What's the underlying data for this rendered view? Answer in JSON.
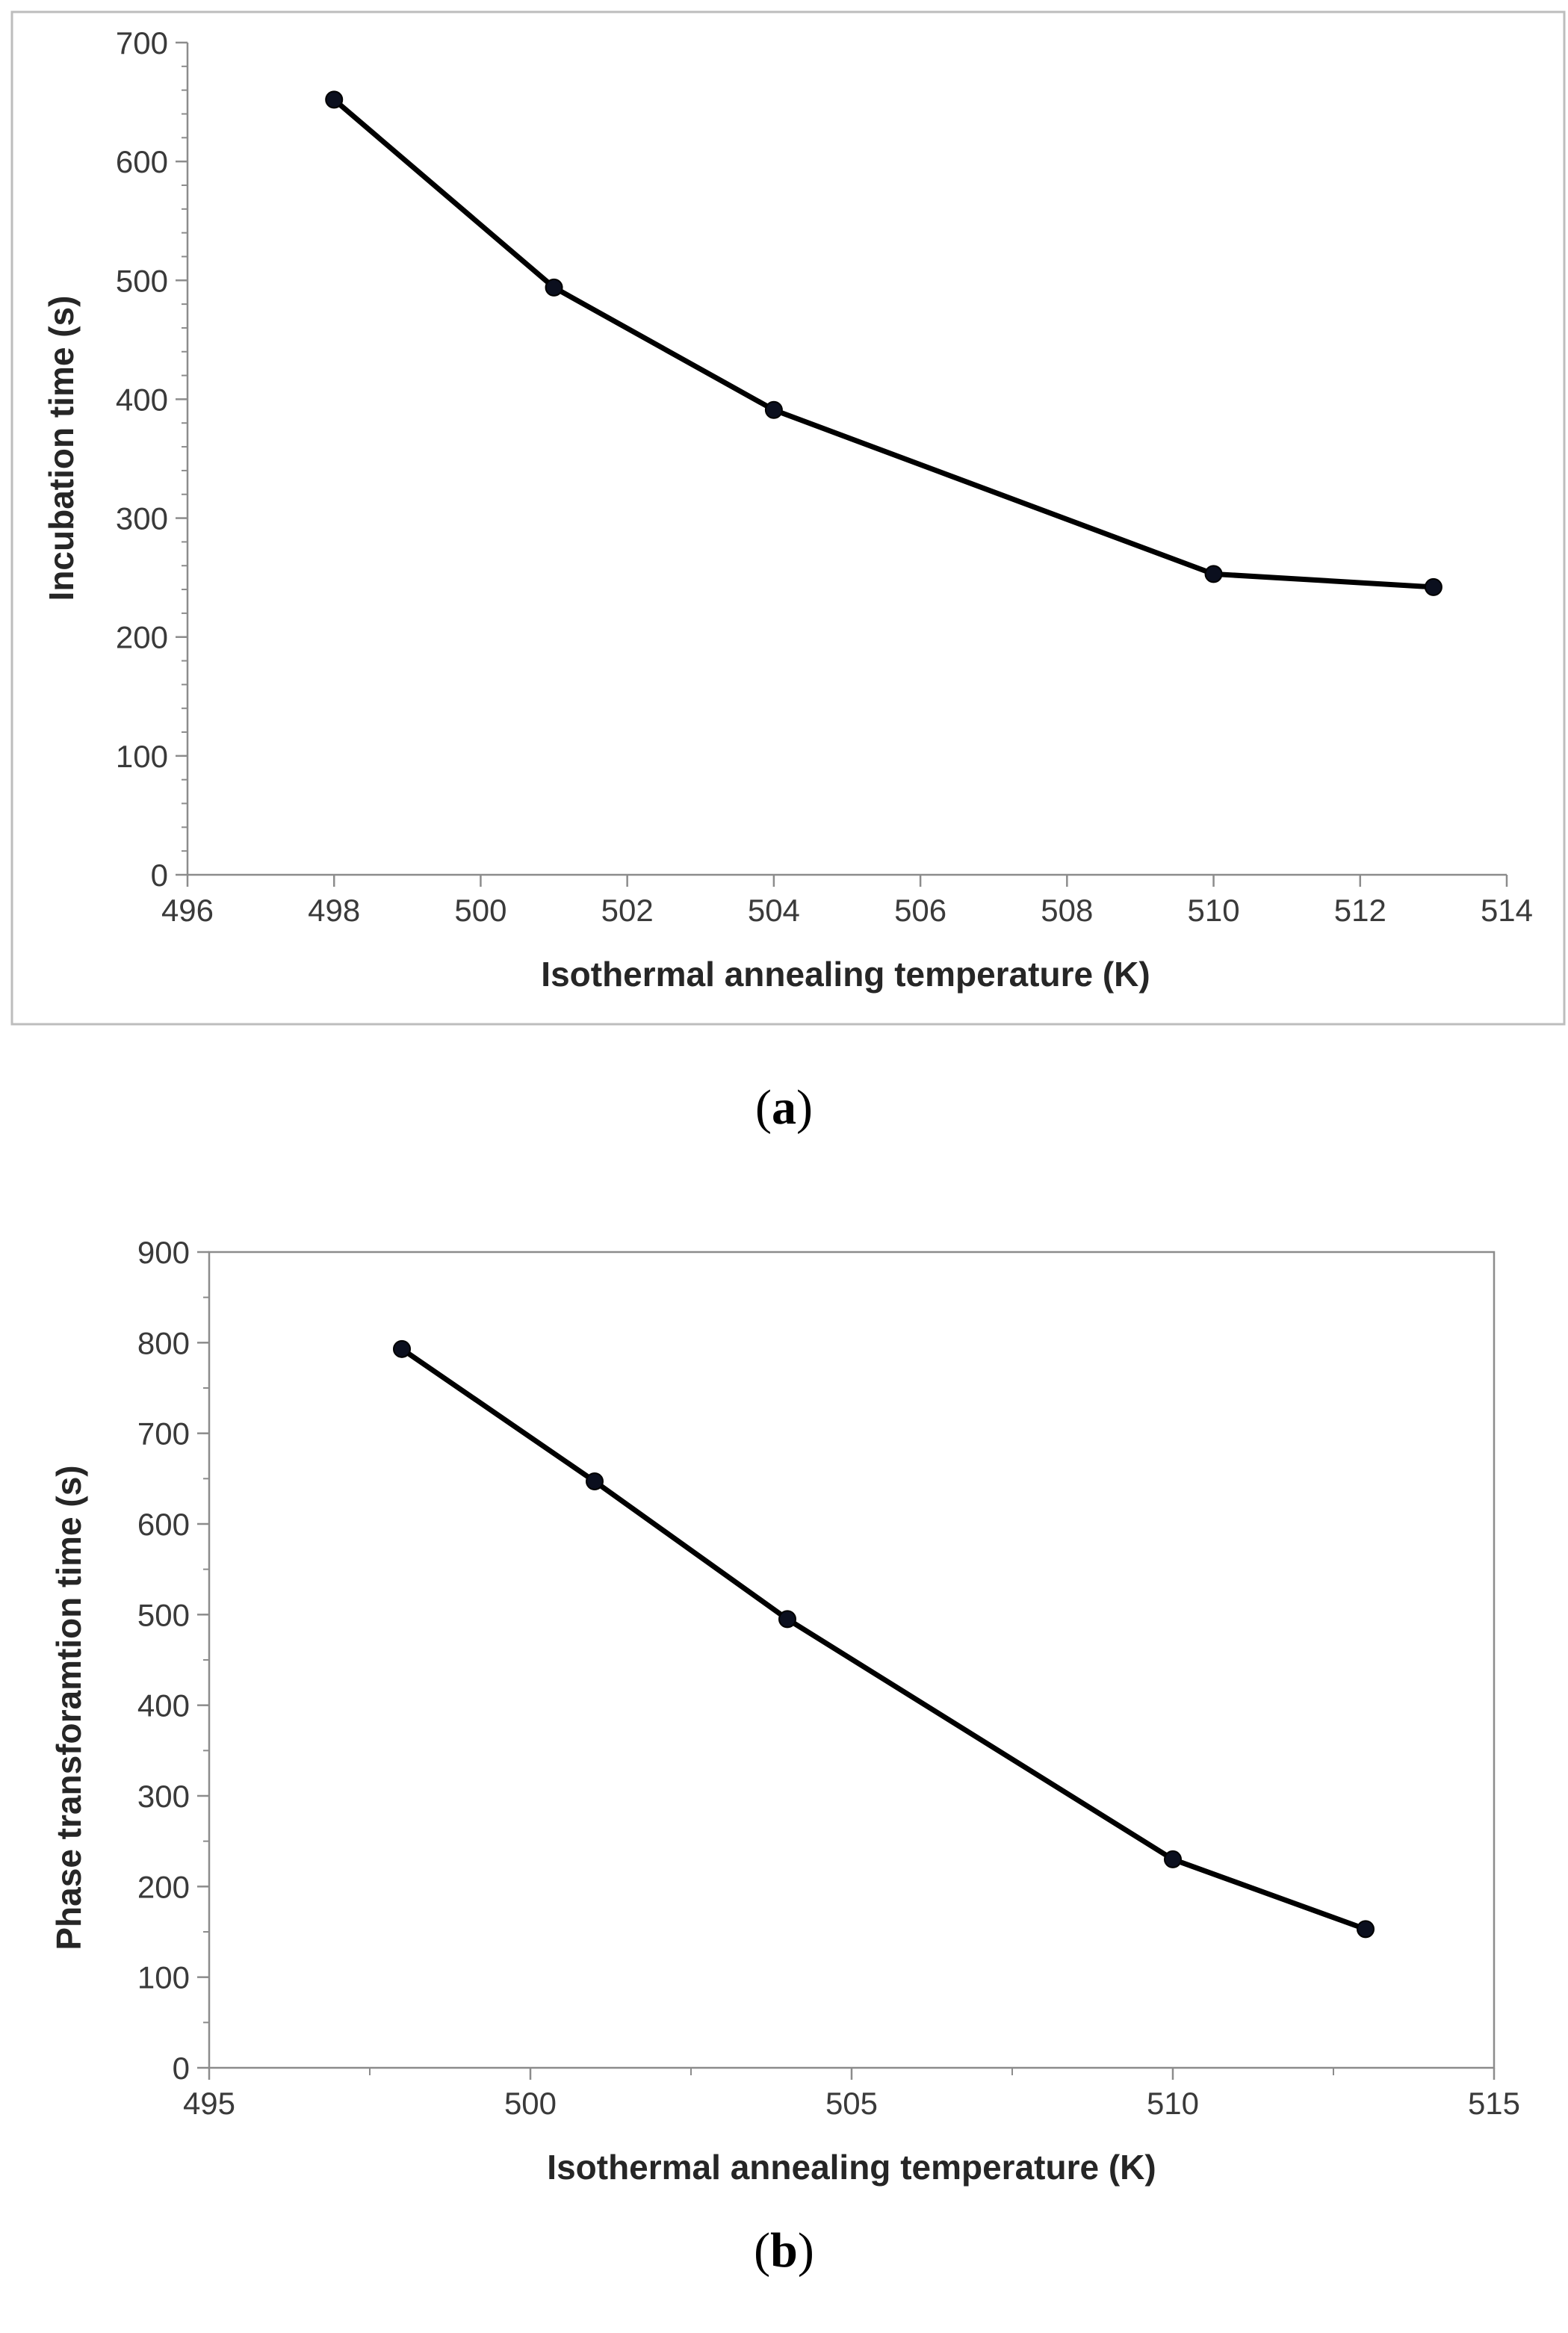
{
  "chart_data": [
    {
      "id": "a",
      "type": "line",
      "caption": "a",
      "xlabel": "Isothermal annealing temperature (K)",
      "ylabel": "Incubation time (s)",
      "xlim": [
        496,
        514
      ],
      "ylim": [
        0,
        700
      ],
      "xticks": [
        496,
        498,
        500,
        502,
        504,
        506,
        508,
        510,
        512,
        514
      ],
      "yticks": [
        0,
        100,
        200,
        300,
        400,
        500,
        600,
        700
      ],
      "y_minor_step": 20,
      "series": [
        {
          "name": "Incubation time",
          "x": [
            498,
            501,
            504,
            510,
            513
          ],
          "y": [
            652,
            494,
            391,
            253,
            242
          ]
        }
      ],
      "grid": false,
      "legend": "none"
    },
    {
      "id": "b",
      "type": "line",
      "caption": "b",
      "xlabel": "Isothermal annealing temperature (K)",
      "ylabel": "Phase transforamtion time (s)",
      "xlim": [
        495,
        515
      ],
      "ylim": [
        0,
        900
      ],
      "xticks": [
        495,
        500,
        505,
        510,
        515
      ],
      "x_minor_step": 2.5,
      "yticks": [
        0,
        100,
        200,
        300,
        400,
        500,
        600,
        700,
        800,
        900
      ],
      "y_minor_step": 50,
      "series": [
        {
          "name": "Phase transformation time",
          "x": [
            498,
            501,
            504,
            510,
            513
          ],
          "y": [
            793,
            647,
            495,
            230,
            153
          ]
        }
      ],
      "grid": false,
      "legend": "none"
    }
  ]
}
